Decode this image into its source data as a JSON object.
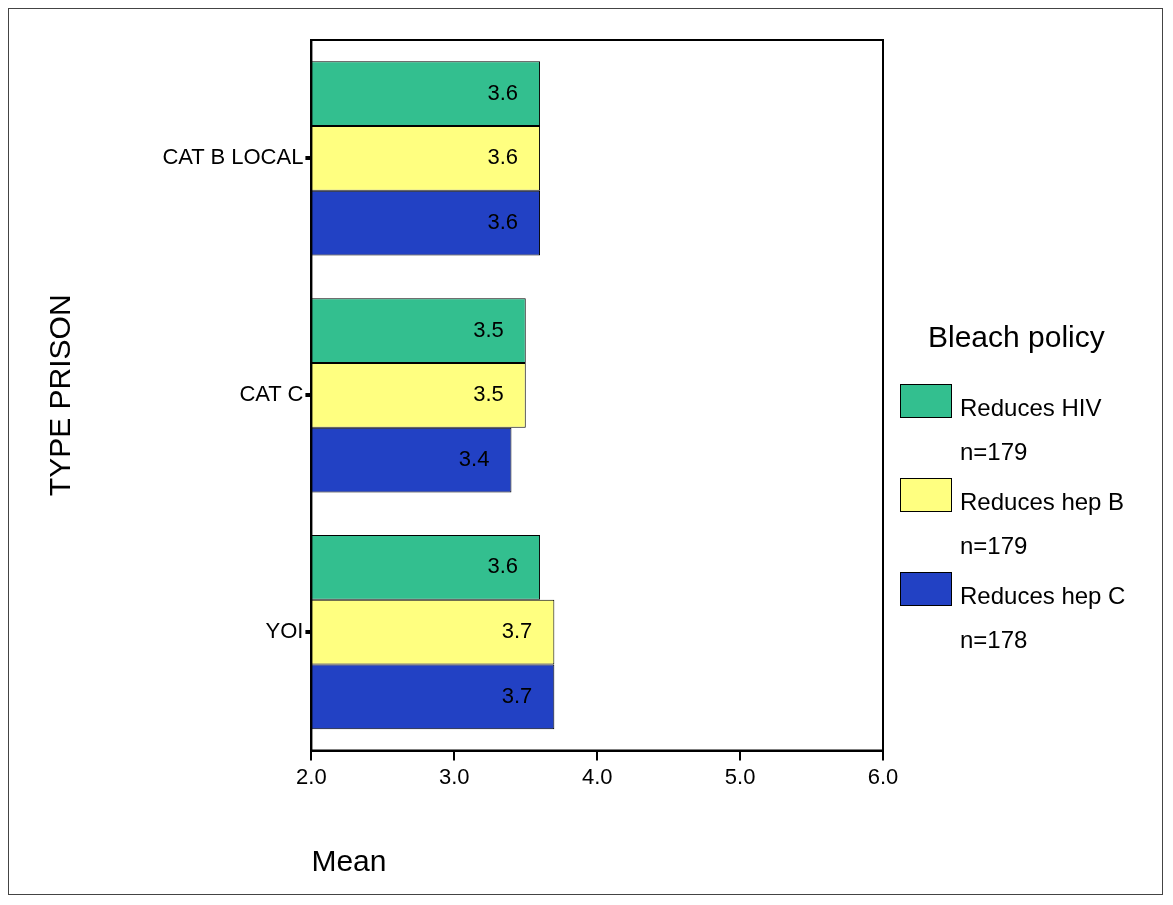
{
  "chart_data": {
    "type": "bar",
    "orientation": "horizontal",
    "xlabel": "Mean",
    "ylabel": "TYPE PRISON",
    "legend_title": "Bleach policy",
    "categories": [
      "CAT B LOCAL",
      "CAT C",
      "YOI"
    ],
    "series": [
      {
        "name": "Reduces HIV n=179",
        "color": "#33bf8f",
        "values": [
          3.6,
          3.5,
          3.6
        ]
      },
      {
        "name": "Reduces hep B n=179",
        "color": "#ffff80",
        "values": [
          3.6,
          3.5,
          3.7
        ]
      },
      {
        "name": "Reduces hep C n=178",
        "color": "#2241c4",
        "values": [
          3.6,
          3.4,
          3.7
        ]
      }
    ],
    "xlim": [
      2,
      6
    ],
    "xticks": [
      {
        "value": 2,
        "label": "2.0"
      },
      {
        "value": 3,
        "label": "3.0"
      },
      {
        "value": 4,
        "label": "4.0"
      },
      {
        "value": 5,
        "label": "5.0"
      },
      {
        "value": 6,
        "label": "6.0"
      }
    ],
    "grid": false,
    "legend": "right",
    "data_labels": true
  }
}
